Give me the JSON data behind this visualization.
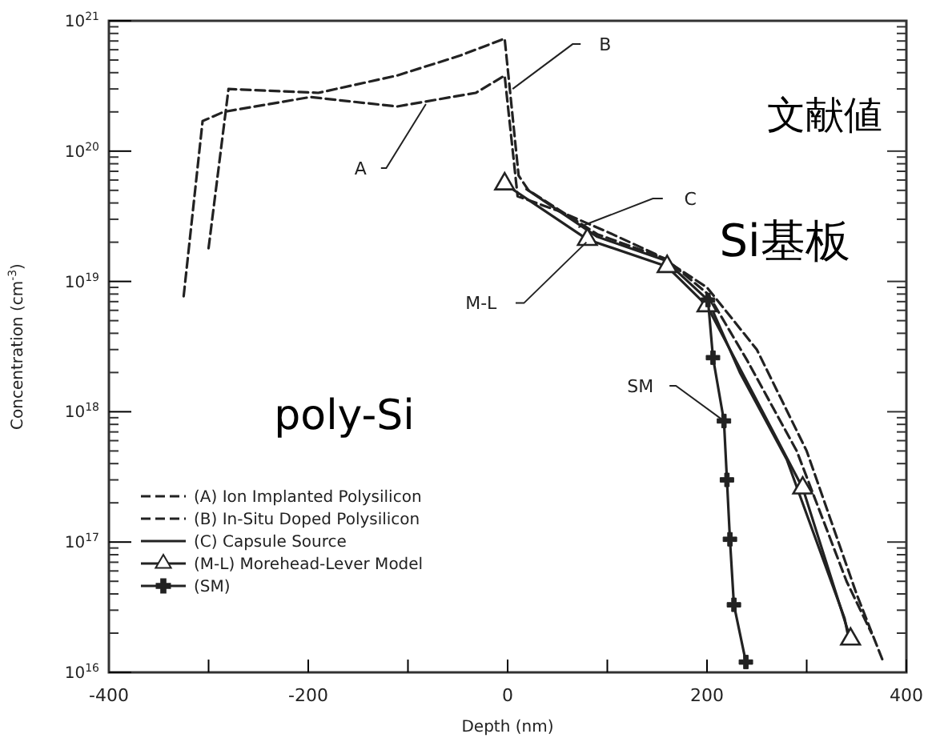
{
  "chart_data": {
    "type": "line",
    "xlabel": "Depth (nm)",
    "ylabel": "Concentration (cm$^{-3}$)",
    "log": "y",
    "xlim": [
      -400,
      400
    ],
    "xticks": [
      -400,
      {
        "value": -300,
        "label": null
      },
      -200,
      {
        "value": -100,
        "label": null
      },
      0,
      {
        "value": 100,
        "label": null
      },
      200,
      {
        "value": 300,
        "label": null
      },
      400
    ],
    "ylim": [
      1e+16,
      1e+21
    ],
    "yticks": [
      {
        "value": 1e+16,
        "label": "10$^{16}$"
      },
      {
        "value": 1e+17,
        "label": "10$^{17}$"
      },
      {
        "value": 1e+18,
        "label": "10$^{18}$"
      },
      {
        "value": 1e+19,
        "label": "10$^{19}$"
      },
      {
        "value": 1e+20,
        "label": "10$^{20}$"
      },
      {
        "value": 1e+21,
        "label": "10$^{21}$"
      }
    ],
    "grid": false,
    "legend": "bottom left",
    "series": [
      {
        "name": "(A) Ion Implanted Polysilicon",
        "color": "#222222",
        "line_style": "dashed",
        "marker": "none",
        "x": [
          -325,
          -306,
          -285,
          -198,
          -111,
          -32,
          -3,
          10,
          50,
          100,
          150,
          200,
          250,
          300,
          350,
          376
        ],
        "values": [
          7.7e+18,
          1.7e+20,
          2e+20,
          2.6e+20,
          2.2e+20,
          2.8e+20,
          3.8e+20,
          4.5e+19,
          3.5e+19,
          2.4e+19,
          1.6e+19,
          9e+18,
          3e+18,
          5e+17,
          4e+16,
          1.25e+16
        ]
      },
      {
        "name": "(B) In-Situ Doped Polysilicon",
        "color": "#222222",
        "line_style": "dashed",
        "marker": "none",
        "x": [
          -300,
          -280,
          -190,
          -111,
          -48,
          -3,
          3,
          11,
          21,
          90,
          158,
          201,
          240,
          290,
          340,
          365
        ],
        "values": [
          1.8e+19,
          3e+20,
          2.8e+20,
          3.8e+20,
          5.4e+20,
          7.3e+20,
          2.6e+20,
          6.5e+19,
          5e+19,
          2.3e+19,
          1.5e+19,
          8e+18,
          2.5e+18,
          5e+17,
          5e+16,
          2e+16
        ]
      },
      {
        "name": "(C) Capsule Source",
        "color": "#222222",
        "line_style": "solid",
        "marker": "none",
        "x": [
          19,
          90,
          158,
          201,
          233,
          280,
          338,
          341
        ],
        "values": [
          5.1e+19,
          2.2e+19,
          1.45e+19,
          7.2e+18,
          2e+18,
          4.3e+17,
          2.6e+16,
          2e+16
        ]
      },
      {
        "name": "(M-L) Morehead-Lever Model",
        "color": "#222222",
        "line_style": "solid",
        "marker": "triangle",
        "x": [
          -3,
          80,
          160,
          200,
          296,
          344
        ],
        "values": [
          5.6e+19,
          2.1e+19,
          1.3e+19,
          6.5e+18,
          2.6e+17,
          1.8e+16
        ]
      },
      {
        "name": "(SM)",
        "color": "#222222",
        "line_style": "solid",
        "marker": "cross",
        "x": [
          201,
          206,
          217,
          220,
          223,
          227,
          239
        ],
        "values": [
          7.2e+18,
          2.6e+18,
          8.5e+17,
          3e+17,
          1.05e+17,
          3.3e+16,
          1.2e+16
        ]
      }
    ],
    "annotations": [
      {
        "text": "A",
        "x": -82,
        "y": 2.3e+20
      },
      {
        "text": "B",
        "x": 5,
        "y": 3e+20
      },
      {
        "text": "C",
        "x": 71,
        "y": 2.6e+19
      },
      {
        "text": "M-L",
        "x": 79,
        "y": 2e+19
      },
      {
        "text": "SM",
        "x": 217,
        "y": 8.5e+17
      },
      "文献値",
      "Si基板",
      "poly-Si"
    ]
  }
}
